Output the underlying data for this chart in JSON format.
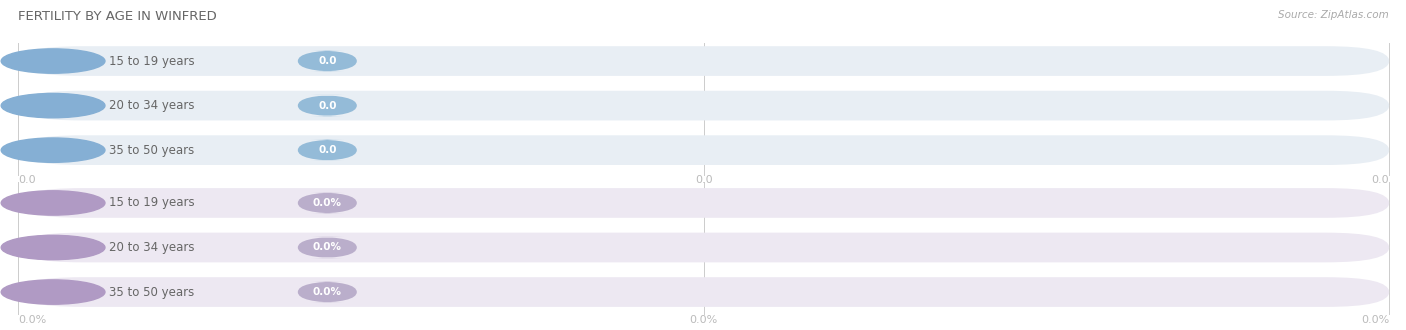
{
  "title": "FERTILITY BY AGE IN WINFRED",
  "source": "Source: ZipAtlas.com",
  "top_labels": [
    "15 to 19 years",
    "20 to 34 years",
    "35 to 50 years"
  ],
  "bottom_labels": [
    "15 to 19 years",
    "20 to 34 years",
    "35 to 50 years"
  ],
  "top_value_labels": [
    "0.0",
    "0.0",
    "0.0"
  ],
  "bottom_value_labels": [
    "0.0%",
    "0.0%",
    "0.0%"
  ],
  "top_xtick_labels": [
    "0.0",
    "0.0",
    "0.0"
  ],
  "bottom_xtick_labels": [
    "0.0%",
    "0.0%",
    "0.0%"
  ],
  "top_bar_bg": "#e8eef4",
  "top_circle_color": "#85afd4",
  "top_badge_color": "#94bbd8",
  "bot_bar_bg": "#ede8f2",
  "bot_circle_color": "#b09ac4",
  "bot_badge_color": "#baaecb",
  "fig_bg": "#ffffff",
  "title_color": "#666666",
  "label_color": "#666666",
  "tick_color": "#bbbbbb",
  "source_color": "#aaaaaa",
  "figsize": [
    14.06,
    3.3
  ],
  "dpi": 100
}
